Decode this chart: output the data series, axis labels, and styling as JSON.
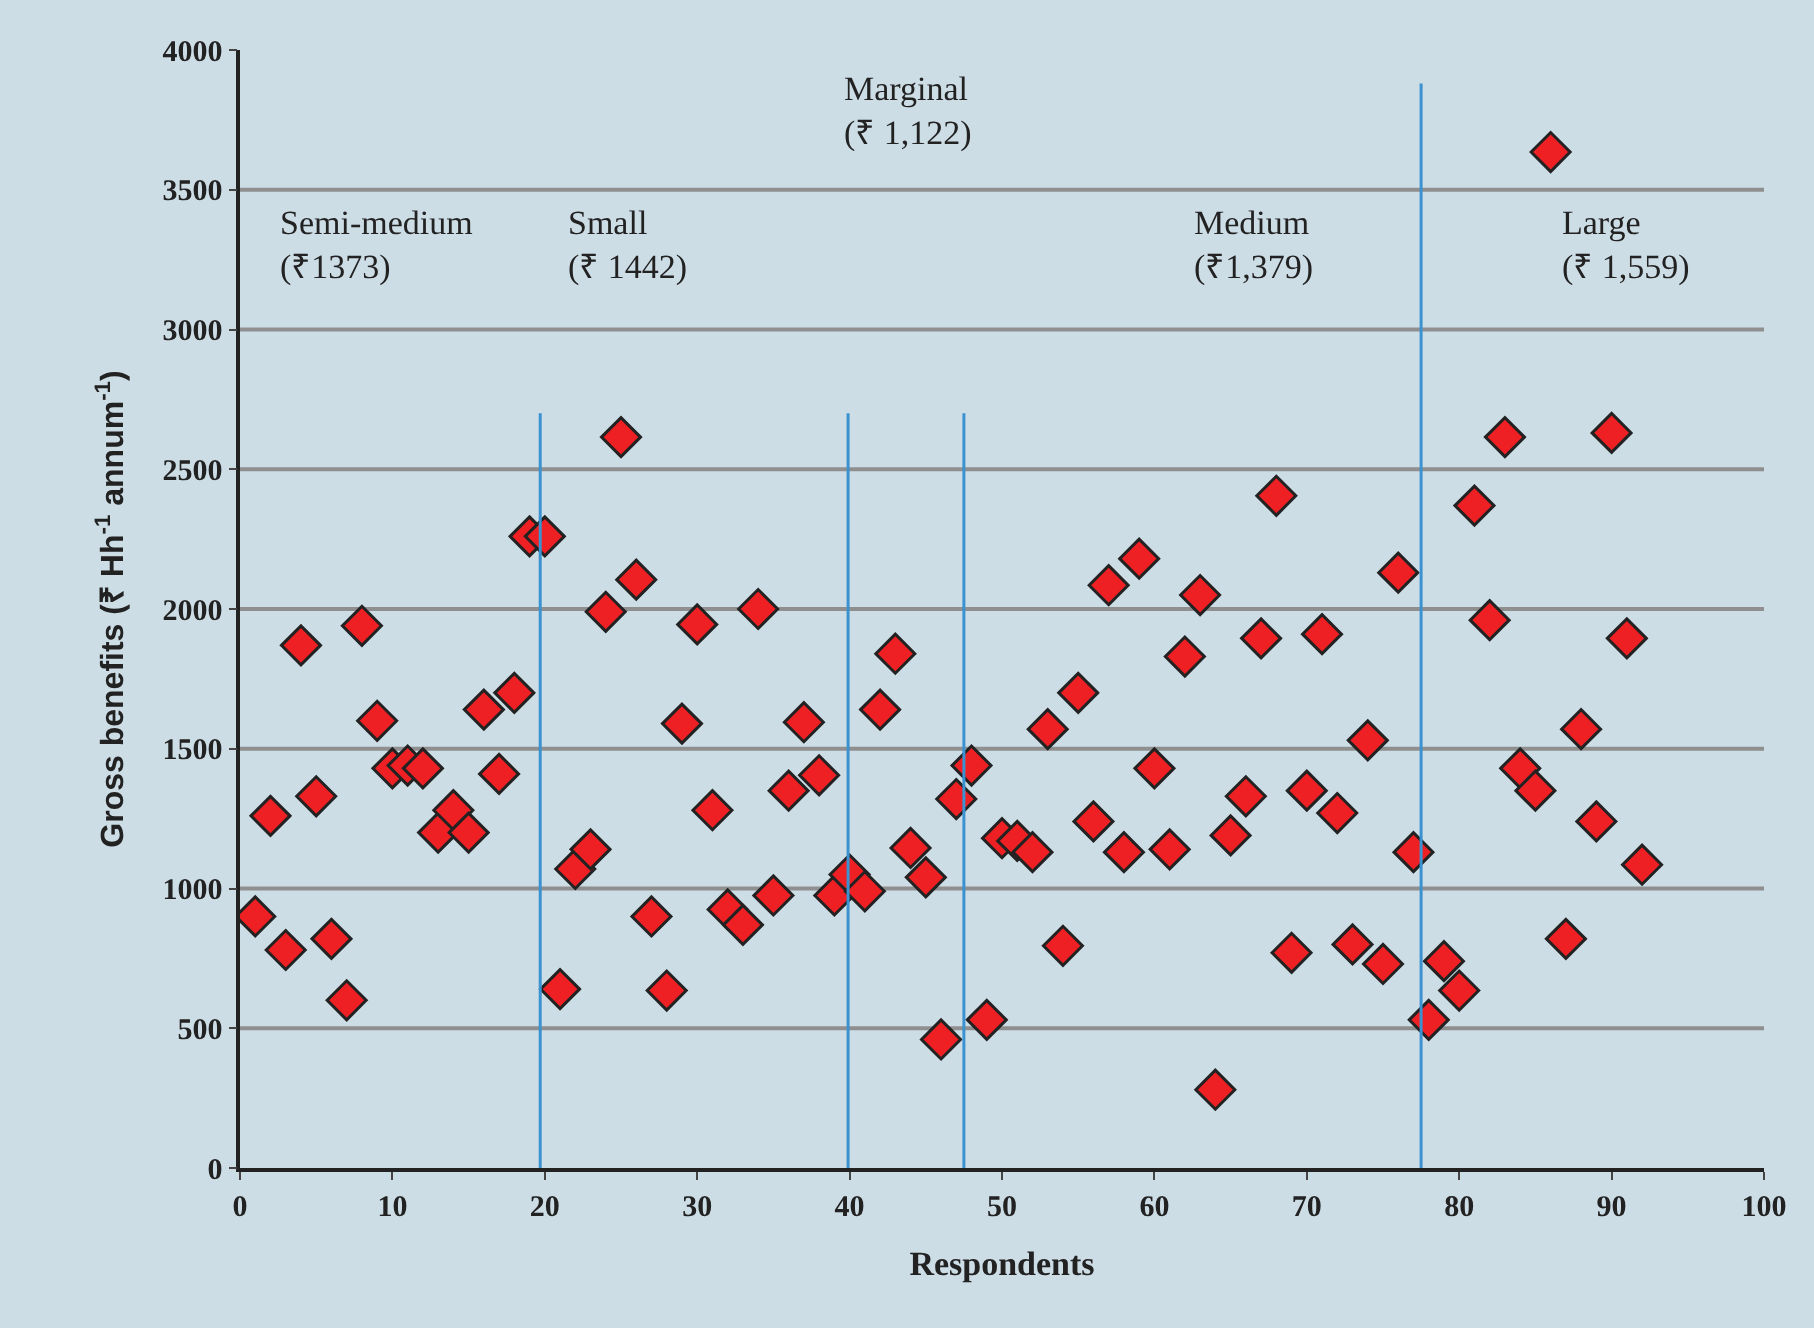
{
  "chart_data": {
    "type": "scatter",
    "xlabel": "Respondents",
    "ylabel": "Gross benefits (₹ Hh$^{-1}$ annum$^{-1}$)",
    "x": [
      1,
      2,
      3,
      4,
      5,
      6,
      7,
      8,
      9,
      10,
      11,
      12,
      13,
      14,
      15,
      16,
      17,
      18,
      19,
      20,
      21,
      22,
      23,
      24,
      25,
      26,
      27,
      28,
      29,
      30,
      31,
      32,
      33,
      34,
      35,
      36,
      37,
      38,
      39,
      40,
      41,
      42,
      43,
      44,
      45,
      46,
      47,
      48,
      49,
      50,
      51,
      52,
      53,
      54,
      55,
      56,
      57,
      58,
      59,
      60,
      61,
      62,
      63,
      64,
      65,
      66,
      67,
      68,
      69,
      70,
      71,
      72,
      73,
      74,
      75,
      76,
      77,
      78,
      79,
      80,
      81,
      82,
      83,
      84,
      85,
      86,
      87,
      88,
      89,
      90,
      91,
      92
    ],
    "series": [
      {
        "color": "#ee2024",
        "values": [
          900,
          1260,
          780,
          1870,
          1330,
          820,
          600,
          1940,
          1600,
          1430,
          1440,
          1430,
          1200,
          1280,
          1200,
          1640,
          1410,
          1700,
          2260,
          2260,
          640,
          1070,
          1140,
          1990,
          2615,
          2105,
          900,
          635,
          1590,
          1945,
          1280,
          925,
          870,
          2000,
          975,
          1350,
          1595,
          1405,
          975,
          1050,
          990,
          1640,
          1840,
          1145,
          1040,
          460,
          1320,
          1440,
          530,
          1180,
          1170,
          1130,
          1570,
          795,
          1700,
          1240,
          2085,
          1130,
          2180,
          1430,
          1140,
          1830,
          2050,
          280,
          1190,
          1330,
          1895,
          2405,
          770,
          1350,
          1910,
          1270,
          800,
          1530,
          730,
          2130,
          1130,
          530,
          740,
          635,
          2370,
          1960,
          2615,
          1430,
          1350,
          3635,
          820,
          1570,
          1240,
          2630,
          1895,
          1085
        ]
      }
    ],
    "marker": "diamond",
    "grid": "y",
    "xlim": [
      0,
      100
    ],
    "xticks": [
      0,
      10,
      20,
      30,
      40,
      50,
      60,
      70,
      80,
      90,
      100
    ],
    "ylim": [
      0,
      4000
    ],
    "yticks": [
      0,
      500,
      1000,
      1500,
      2000,
      2500,
      3000,
      3500,
      4000
    ],
    "ref_lines": [
      {
        "axis": "x",
        "value": 19.7,
        "color": "#3a93d0"
      },
      {
        "axis": "x",
        "value": 39.9,
        "color": "#3a93d0"
      },
      {
        "axis": "x",
        "value": 47.5,
        "color": "#3a93d0"
      },
      {
        "axis": "x",
        "value": 77.5,
        "color": "#3a93d0"
      }
    ],
    "annotations": [
      "Semi-medium\n(₹1373)",
      "Small\n(₹ 1442)",
      "Marginal\n(₹ 1,122)",
      "Medium\n(₹1,379)",
      "Large\n(₹ 1,559)"
    ]
  }
}
